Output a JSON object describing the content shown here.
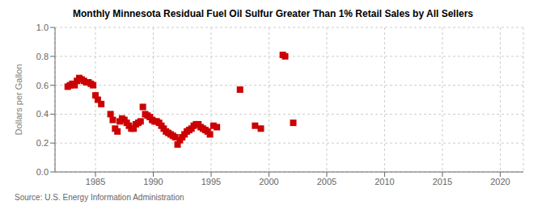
{
  "chart_data": {
    "type": "scatter",
    "title": "Monthly Minnesota Residual Fuel Oil Sulfur Greater Than 1% Retail Sales by All Sellers",
    "ylabel": "Dollars per Gallon",
    "annotations": [
      "Source: U.S. Energy Information Administration"
    ],
    "color": "#cc0000",
    "marker": "square",
    "grid": true,
    "xlim": [
      1981.5,
      2022
    ],
    "ylim": [
      0.0,
      1.0
    ],
    "xticks": [
      1985,
      1990,
      1995,
      2000,
      2005,
      2010,
      2015,
      2020
    ],
    "yticks": [
      {
        "value": 0.0,
        "label": "0.0"
      },
      0.2,
      0.4,
      0.6,
      0.8,
      {
        "value": 1.0,
        "label": "1.0"
      }
    ],
    "x": [
      1982.6,
      1982.8,
      1983.0,
      1983.2,
      1983.4,
      1983.6,
      1983.8,
      1984.0,
      1984.2,
      1984.4,
      1984.6,
      1984.8,
      1985.0,
      1985.2,
      1985.5,
      1986.3,
      1986.5,
      1986.7,
      1986.9,
      1987.1,
      1987.3,
      1987.5,
      1987.7,
      1987.9,
      1988.1,
      1988.3,
      1988.5,
      1988.7,
      1988.9,
      1989.1,
      1989.3,
      1989.5,
      1989.7,
      1989.9,
      1990.1,
      1990.3,
      1990.5,
      1990.7,
      1990.9,
      1991.1,
      1991.3,
      1991.5,
      1991.7,
      1991.9,
      1992.1,
      1992.3,
      1992.5,
      1992.7,
      1992.9,
      1993.1,
      1993.3,
      1993.5,
      1993.7,
      1993.9,
      1994.1,
      1994.3,
      1994.5,
      1994.7,
      1994.9,
      1995.2,
      1995.5,
      1997.5,
      1998.8,
      1999.3,
      2001.2,
      2001.4,
      2002.1
    ],
    "values": [
      0.59,
      0.6,
      0.61,
      0.6,
      0.63,
      0.65,
      0.64,
      0.63,
      0.62,
      0.62,
      0.61,
      0.6,
      0.53,
      0.5,
      0.47,
      0.4,
      0.36,
      0.3,
      0.28,
      0.35,
      0.37,
      0.36,
      0.34,
      0.32,
      0.3,
      0.3,
      0.33,
      0.34,
      0.35,
      0.45,
      0.4,
      0.39,
      0.38,
      0.36,
      0.35,
      0.35,
      0.34,
      0.32,
      0.3,
      0.28,
      0.27,
      0.26,
      0.25,
      0.24,
      0.19,
      0.22,
      0.24,
      0.26,
      0.28,
      0.29,
      0.3,
      0.32,
      0.33,
      0.33,
      0.31,
      0.3,
      0.29,
      0.28,
      0.26,
      0.32,
      0.31,
      0.57,
      0.32,
      0.3,
      0.81,
      0.8,
      0.34
    ]
  }
}
